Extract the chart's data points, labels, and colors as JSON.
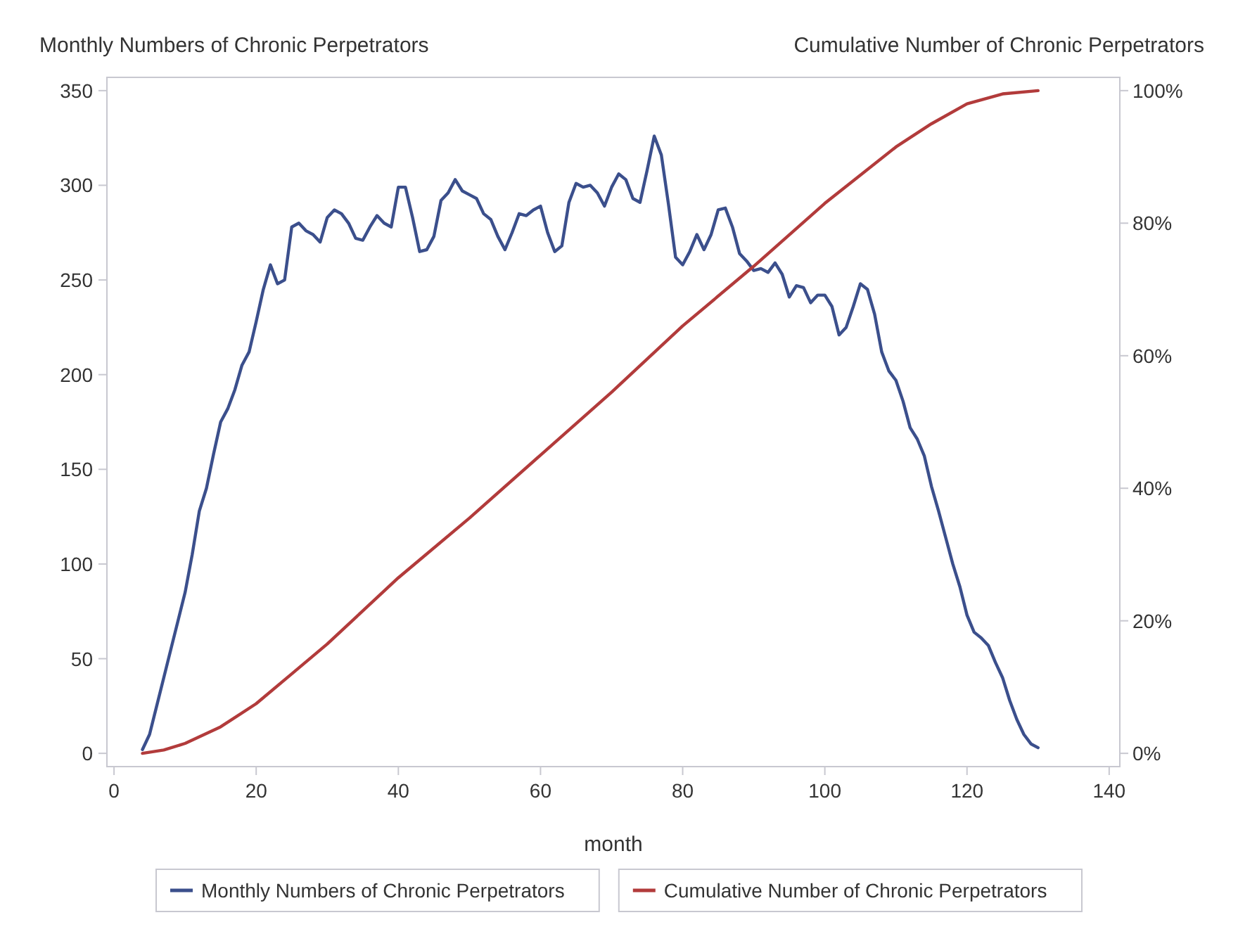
{
  "chart_data": {
    "type": "line",
    "xlabel": "month",
    "ylabel": "Monthly Numbers of Chronic Perpetrators",
    "y2label": "Cumulative Number of Chronic Perpetrators",
    "xlim": [
      -1,
      141.5
    ],
    "xticks": [
      0,
      20,
      40,
      60,
      80,
      100,
      120,
      140
    ],
    "ylim": [
      -7,
      357
    ],
    "yticks": [
      0,
      50,
      100,
      150,
      200,
      250,
      300,
      350
    ],
    "y2lim": [
      -2,
      102
    ],
    "y2ticks": [
      {
        "value": 0,
        "label": "0%"
      },
      {
        "value": 20,
        "label": "20%"
      },
      {
        "value": 40,
        "label": "40%"
      },
      {
        "value": 60,
        "label": "60%"
      },
      {
        "value": 80,
        "label": "80%"
      },
      {
        "value": 100,
        "label": "100%"
      }
    ],
    "legend": "bottom",
    "grid": false,
    "marker": "none",
    "line_style": "solid",
    "series": [
      {
        "name": "Monthly Numbers of Chronic Perpetrators",
        "color": "#3b4f8c",
        "x": [
          4,
          5,
          6,
          7,
          8,
          9,
          10,
          11,
          12,
          13,
          14,
          15,
          16,
          17,
          18,
          19,
          20,
          21,
          22,
          23,
          24,
          25,
          26,
          27,
          28,
          29,
          30,
          31,
          32,
          33,
          34,
          35,
          36,
          37,
          38,
          39,
          40,
          41,
          42,
          43,
          44,
          45,
          46,
          47,
          48,
          49,
          50,
          51,
          52,
          53,
          54,
          55,
          56,
          57,
          58,
          59,
          60,
          61,
          62,
          63,
          64,
          65,
          66,
          67,
          68,
          69,
          70,
          71,
          72,
          73,
          74,
          75,
          76,
          77,
          78,
          79,
          80,
          81,
          82,
          83,
          84,
          85,
          86,
          87,
          88,
          89,
          90,
          91,
          92,
          93,
          94,
          95,
          96,
          97,
          98,
          99,
          100,
          101,
          102,
          103,
          104,
          105,
          106,
          107,
          108,
          109,
          110,
          111,
          112,
          113,
          114,
          115,
          116,
          117,
          118,
          119,
          120,
          121,
          122,
          123,
          124,
          125,
          126,
          127,
          128,
          129,
          130
        ],
        "values": [
          2,
          10,
          25,
          40,
          55,
          70,
          85,
          105,
          128,
          140,
          158,
          175,
          182,
          192,
          205,
          212,
          228,
          245,
          258,
          248,
          250,
          278,
          280,
          276,
          274,
          270,
          283,
          287,
          285,
          280,
          272,
          271,
          278,
          284,
          280,
          278,
          299,
          299,
          283,
          265,
          266,
          273,
          292,
          296,
          303,
          297,
          295,
          293,
          285,
          282,
          273,
          266,
          275,
          285,
          284,
          287,
          289,
          275,
          265,
          268,
          291,
          301,
          299,
          300,
          296,
          289,
          299,
          306,
          303,
          293,
          291,
          308,
          326,
          316,
          290,
          262,
          258,
          265,
          274,
          266,
          274,
          287,
          288,
          278,
          264,
          260,
          255,
          256,
          254,
          259,
          253,
          241,
          247,
          246,
          238,
          242,
          242,
          236,
          221,
          225,
          236,
          248,
          245,
          232,
          212,
          202,
          197,
          186,
          172,
          166,
          157,
          141,
          128,
          114,
          100,
          88,
          73,
          64,
          61,
          57,
          48,
          40,
          28,
          18,
          10,
          5,
          3
        ]
      },
      {
        "name": "Cumulative Number of Chronic Perpetrators",
        "color": "#b23b3b",
        "axis": "y2",
        "x": [
          4,
          7,
          10,
          15,
          20,
          25,
          30,
          40,
          50,
          60,
          70,
          80,
          90,
          100,
          110,
          115,
          120,
          125,
          130
        ],
        "values": [
          0,
          0.5,
          1.5,
          4,
          7.5,
          12,
          16.5,
          26.5,
          35.5,
          45,
          54.5,
          64.5,
          73.5,
          83,
          91.5,
          95,
          98,
          99.5,
          100
        ]
      }
    ]
  }
}
